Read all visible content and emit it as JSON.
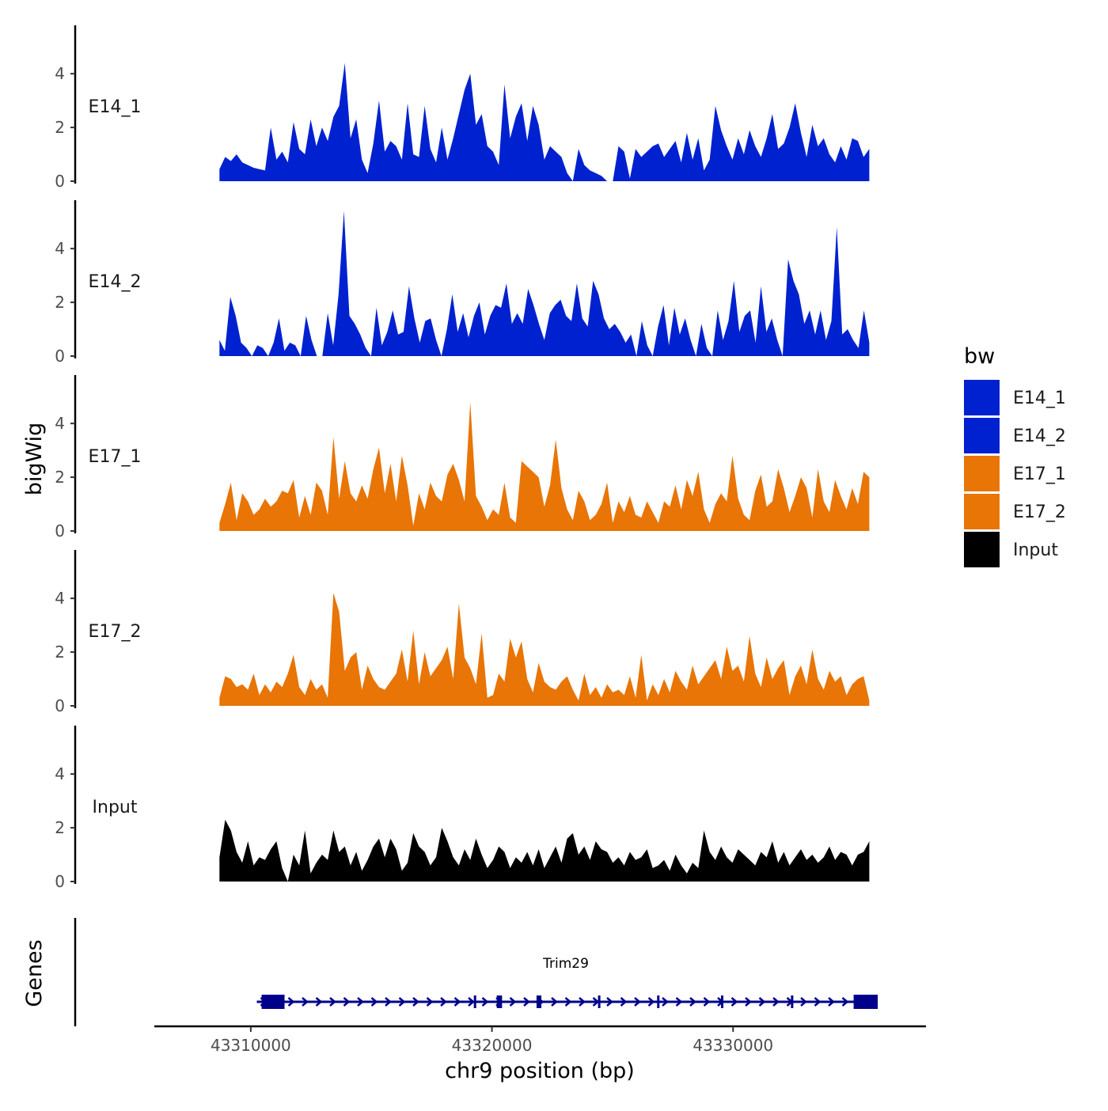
{
  "chart_data": {
    "type": "area",
    "title": "",
    "ylabel": "bigWig",
    "xlabel": "chr9 position (bp)",
    "xlim": [
      43306000,
      43338000
    ],
    "ylim": [
      0,
      5.8
    ],
    "y_ticks": [
      0,
      2,
      4
    ],
    "x_ticks": [
      43310000,
      43320000,
      43330000
    ],
    "x_tick_labels": [
      "43310000",
      "43320000",
      "43330000"
    ],
    "legend": {
      "title": "bw",
      "position": "right",
      "entries": [
        {
          "label": "E14_1",
          "color": "#0021D0"
        },
        {
          "label": "E14_2",
          "color": "#0021D0"
        },
        {
          "label": "E17_1",
          "color": "#E87505"
        },
        {
          "label": "E17_2",
          "color": "#E87505"
        },
        {
          "label": "Input",
          "color": "#000000"
        }
      ]
    },
    "series": [
      {
        "name": "E14_1",
        "color": "#0021D0",
        "x_start": 43308700,
        "x_end": 43335650,
        "values": [
          0.45,
          0.9,
          0.75,
          1.0,
          0.7,
          0.6,
          0.5,
          0.45,
          0.4,
          2.0,
          0.8,
          1.1,
          0.7,
          2.2,
          1.2,
          1.0,
          2.3,
          1.3,
          2.0,
          1.5,
          2.4,
          2.8,
          4.4,
          1.6,
          2.3,
          0.8,
          0.3,
          1.4,
          3.0,
          1.1,
          1.5,
          1.3,
          0.8,
          2.9,
          1.0,
          0.9,
          2.8,
          1.2,
          0.7,
          2.0,
          0.8,
          1.6,
          2.5,
          3.4,
          4.0,
          2.1,
          2.5,
          1.3,
          1.1,
          0.6,
          3.6,
          1.6,
          2.4,
          2.9,
          1.5,
          2.8,
          2.1,
          0.8,
          1.3,
          1.1,
          0.9,
          0.3,
          0.0,
          1.2,
          0.6,
          0.4,
          0.3,
          0.2,
          0.0,
          0.0,
          1.3,
          1.1,
          0.1,
          1.2,
          0.9,
          1.1,
          1.3,
          1.4,
          0.9,
          1.2,
          1.5,
          0.7,
          1.8,
          0.8,
          1.6,
          0.4,
          0.8,
          2.8,
          1.9,
          1.3,
          0.8,
          1.6,
          1.0,
          1.9,
          1.3,
          0.9,
          1.6,
          2.5,
          1.2,
          1.4,
          2.0,
          2.9,
          1.8,
          0.9,
          2.1,
          1.3,
          1.6,
          1.0,
          0.7,
          1.3,
          0.8,
          1.6,
          1.5,
          0.9,
          1.2
        ]
      },
      {
        "name": "E14_2",
        "color": "#0021D0",
        "x_start": 43308700,
        "x_end": 43335650,
        "values": [
          0.6,
          0.2,
          2.2,
          1.5,
          0.5,
          0.3,
          0.0,
          0.4,
          0.3,
          0.0,
          0.5,
          1.4,
          0.2,
          0.5,
          0.4,
          0.0,
          1.5,
          0.6,
          0.0,
          0.0,
          1.6,
          0.4,
          2.3,
          5.4,
          1.5,
          1.2,
          0.8,
          0.3,
          0.0,
          1.8,
          0.4,
          0.9,
          1.7,
          0.8,
          0.9,
          2.6,
          1.4,
          0.5,
          1.3,
          1.4,
          0.6,
          0.0,
          1.0,
          2.3,
          0.9,
          1.6,
          0.7,
          1.5,
          2.0,
          0.8,
          1.5,
          1.9,
          1.8,
          2.7,
          1.2,
          1.6,
          1.2,
          2.5,
          1.9,
          1.2,
          0.6,
          1.6,
          1.9,
          2.1,
          1.5,
          1.3,
          2.7,
          1.4,
          1.1,
          2.8,
          2.3,
          1.4,
          1.0,
          1.2,
          0.9,
          0.5,
          0.8,
          0.0,
          1.3,
          0.4,
          0.0,
          1.1,
          1.9,
          0.4,
          1.8,
          0.8,
          1.4,
          0.6,
          0.0,
          1.2,
          0.3,
          0.0,
          1.7,
          0.6,
          1.3,
          2.8,
          0.9,
          1.5,
          1.7,
          0.5,
          2.6,
          0.9,
          1.4,
          0.6,
          0.0,
          3.6,
          2.8,
          2.3,
          1.2,
          1.7,
          0.8,
          1.7,
          0.6,
          1.3,
          4.8,
          0.8,
          1.0,
          0.6,
          0.3,
          1.7,
          0.5
        ]
      },
      {
        "name": "E17_1",
        "color": "#E87505",
        "x_start": 43308700,
        "x_end": 43335650,
        "values": [
          0.3,
          1.0,
          1.8,
          0.4,
          1.4,
          1.1,
          0.6,
          0.8,
          1.2,
          0.9,
          1.1,
          1.5,
          1.4,
          1.9,
          0.5,
          1.3,
          0.6,
          1.8,
          1.5,
          0.6,
          3.5,
          1.2,
          2.6,
          1.4,
          1.1,
          1.7,
          1.2,
          2.3,
          3.1,
          1.4,
          2.5,
          1.1,
          2.8,
          1.7,
          0.2,
          1.4,
          0.8,
          1.8,
          1.3,
          1.1,
          2.1,
          2.5,
          1.9,
          1.1,
          4.8,
          1.3,
          0.9,
          0.4,
          0.8,
          0.6,
          1.8,
          0.5,
          0.3,
          2.6,
          2.4,
          2.2,
          2.0,
          0.9,
          1.7,
          3.4,
          1.6,
          0.8,
          0.4,
          1.5,
          1.1,
          0.4,
          0.6,
          1.0,
          1.8,
          0.3,
          1.1,
          0.7,
          1.3,
          0.6,
          0.5,
          1.1,
          0.7,
          0.3,
          1.1,
          0.9,
          1.7,
          0.8,
          1.9,
          1.3,
          2.2,
          0.8,
          0.3,
          1.0,
          1.4,
          1.1,
          2.8,
          1.2,
          0.6,
          0.4,
          1.5,
          2.1,
          0.9,
          1.1,
          2.3,
          1.6,
          0.7,
          1.3,
          2.0,
          1.6,
          0.5,
          2.3,
          1.1,
          0.7,
          1.9,
          1.3,
          0.8,
          1.6,
          1.0,
          2.2,
          2.0
        ]
      },
      {
        "name": "E17_2",
        "color": "#E87505",
        "x_start": 43308700,
        "x_end": 43335650,
        "values": [
          0.3,
          1.1,
          1.0,
          0.7,
          0.8,
          0.6,
          1.2,
          0.4,
          0.8,
          0.5,
          0.9,
          0.7,
          1.2,
          1.9,
          0.7,
          0.4,
          1.0,
          0.6,
          0.8,
          0.3,
          4.2,
          3.5,
          1.3,
          1.8,
          2.0,
          0.6,
          1.5,
          1.0,
          0.7,
          0.6,
          0.9,
          1.2,
          2.1,
          0.9,
          2.8,
          0.8,
          2.0,
          1.1,
          1.4,
          1.7,
          2.2,
          1.0,
          3.8,
          1.8,
          1.4,
          0.8,
          2.7,
          0.3,
          0.4,
          1.2,
          0.9,
          2.5,
          1.8,
          2.4,
          1.0,
          0.5,
          1.6,
          0.9,
          0.7,
          0.6,
          0.9,
          1.1,
          0.6,
          0.2,
          1.2,
          0.4,
          0.7,
          0.3,
          0.8,
          0.5,
          0.6,
          0.4,
          1.1,
          0.3,
          1.9,
          0.2,
          0.8,
          0.4,
          1.0,
          0.5,
          1.3,
          0.9,
          0.6,
          1.5,
          0.8,
          1.1,
          1.4,
          1.7,
          1.0,
          2.2,
          1.3,
          1.5,
          0.9,
          2.6,
          1.2,
          0.7,
          1.8,
          1.0,
          1.4,
          1.7,
          0.4,
          1.1,
          1.5,
          0.8,
          2.1,
          1.0,
          0.6,
          1.3,
          0.9,
          1.1,
          0.4,
          0.8,
          1.0,
          1.1,
          0.2
        ]
      },
      {
        "name": "Input",
        "color": "#000000",
        "x_start": 43308700,
        "x_end": 43335650,
        "values": [
          0.9,
          2.3,
          1.9,
          1.1,
          0.7,
          1.5,
          0.6,
          0.9,
          0.8,
          1.2,
          1.5,
          0.5,
          0.0,
          1.0,
          0.6,
          1.9,
          0.3,
          0.7,
          1.0,
          0.8,
          1.9,
          1.1,
          1.3,
          0.6,
          1.1,
          0.4,
          0.8,
          1.3,
          1.6,
          0.9,
          1.6,
          1.2,
          0.4,
          0.7,
          1.8,
          1.3,
          1.1,
          0.6,
          0.9,
          2.0,
          1.5,
          0.9,
          0.6,
          1.2,
          0.8,
          1.6,
          1.0,
          0.5,
          0.8,
          1.3,
          1.1,
          0.5,
          0.9,
          0.7,
          1.1,
          0.6,
          1.2,
          0.5,
          0.9,
          1.3,
          0.7,
          1.6,
          1.8,
          1.0,
          1.3,
          0.8,
          1.5,
          1.2,
          1.1,
          0.7,
          0.9,
          0.6,
          1.1,
          0.8,
          0.9,
          1.2,
          0.5,
          0.6,
          0.8,
          0.4,
          1.0,
          0.6,
          0.3,
          0.7,
          0.5,
          1.9,
          1.1,
          0.8,
          1.3,
          0.9,
          0.7,
          1.2,
          1.0,
          0.8,
          0.6,
          1.1,
          0.9,
          1.5,
          0.7,
          1.1,
          0.6,
          0.9,
          1.2,
          0.8,
          1.0,
          0.7,
          0.9,
          1.3,
          0.8,
          1.1,
          1.0,
          0.6,
          1.0,
          1.1,
          1.5
        ]
      }
    ],
    "genes": {
      "label": "Genes",
      "items": [
        {
          "name": "Trim29",
          "strand": "+",
          "start": 43310250,
          "end": 43336000,
          "color": "#00008B",
          "exons": [
            {
              "start": 43310450,
              "end": 43311400
            },
            {
              "start": 43319250,
              "end": 43319330
            },
            {
              "start": 43320200,
              "end": 43320420
            },
            {
              "start": 43321850,
              "end": 43322050
            },
            {
              "start": 43324400,
              "end": 43324480
            },
            {
              "start": 43326850,
              "end": 43326920
            },
            {
              "start": 43329500,
              "end": 43329560
            },
            {
              "start": 43332400,
              "end": 43332470
            },
            {
              "start": 43335000,
              "end": 43336000
            }
          ]
        }
      ]
    }
  }
}
